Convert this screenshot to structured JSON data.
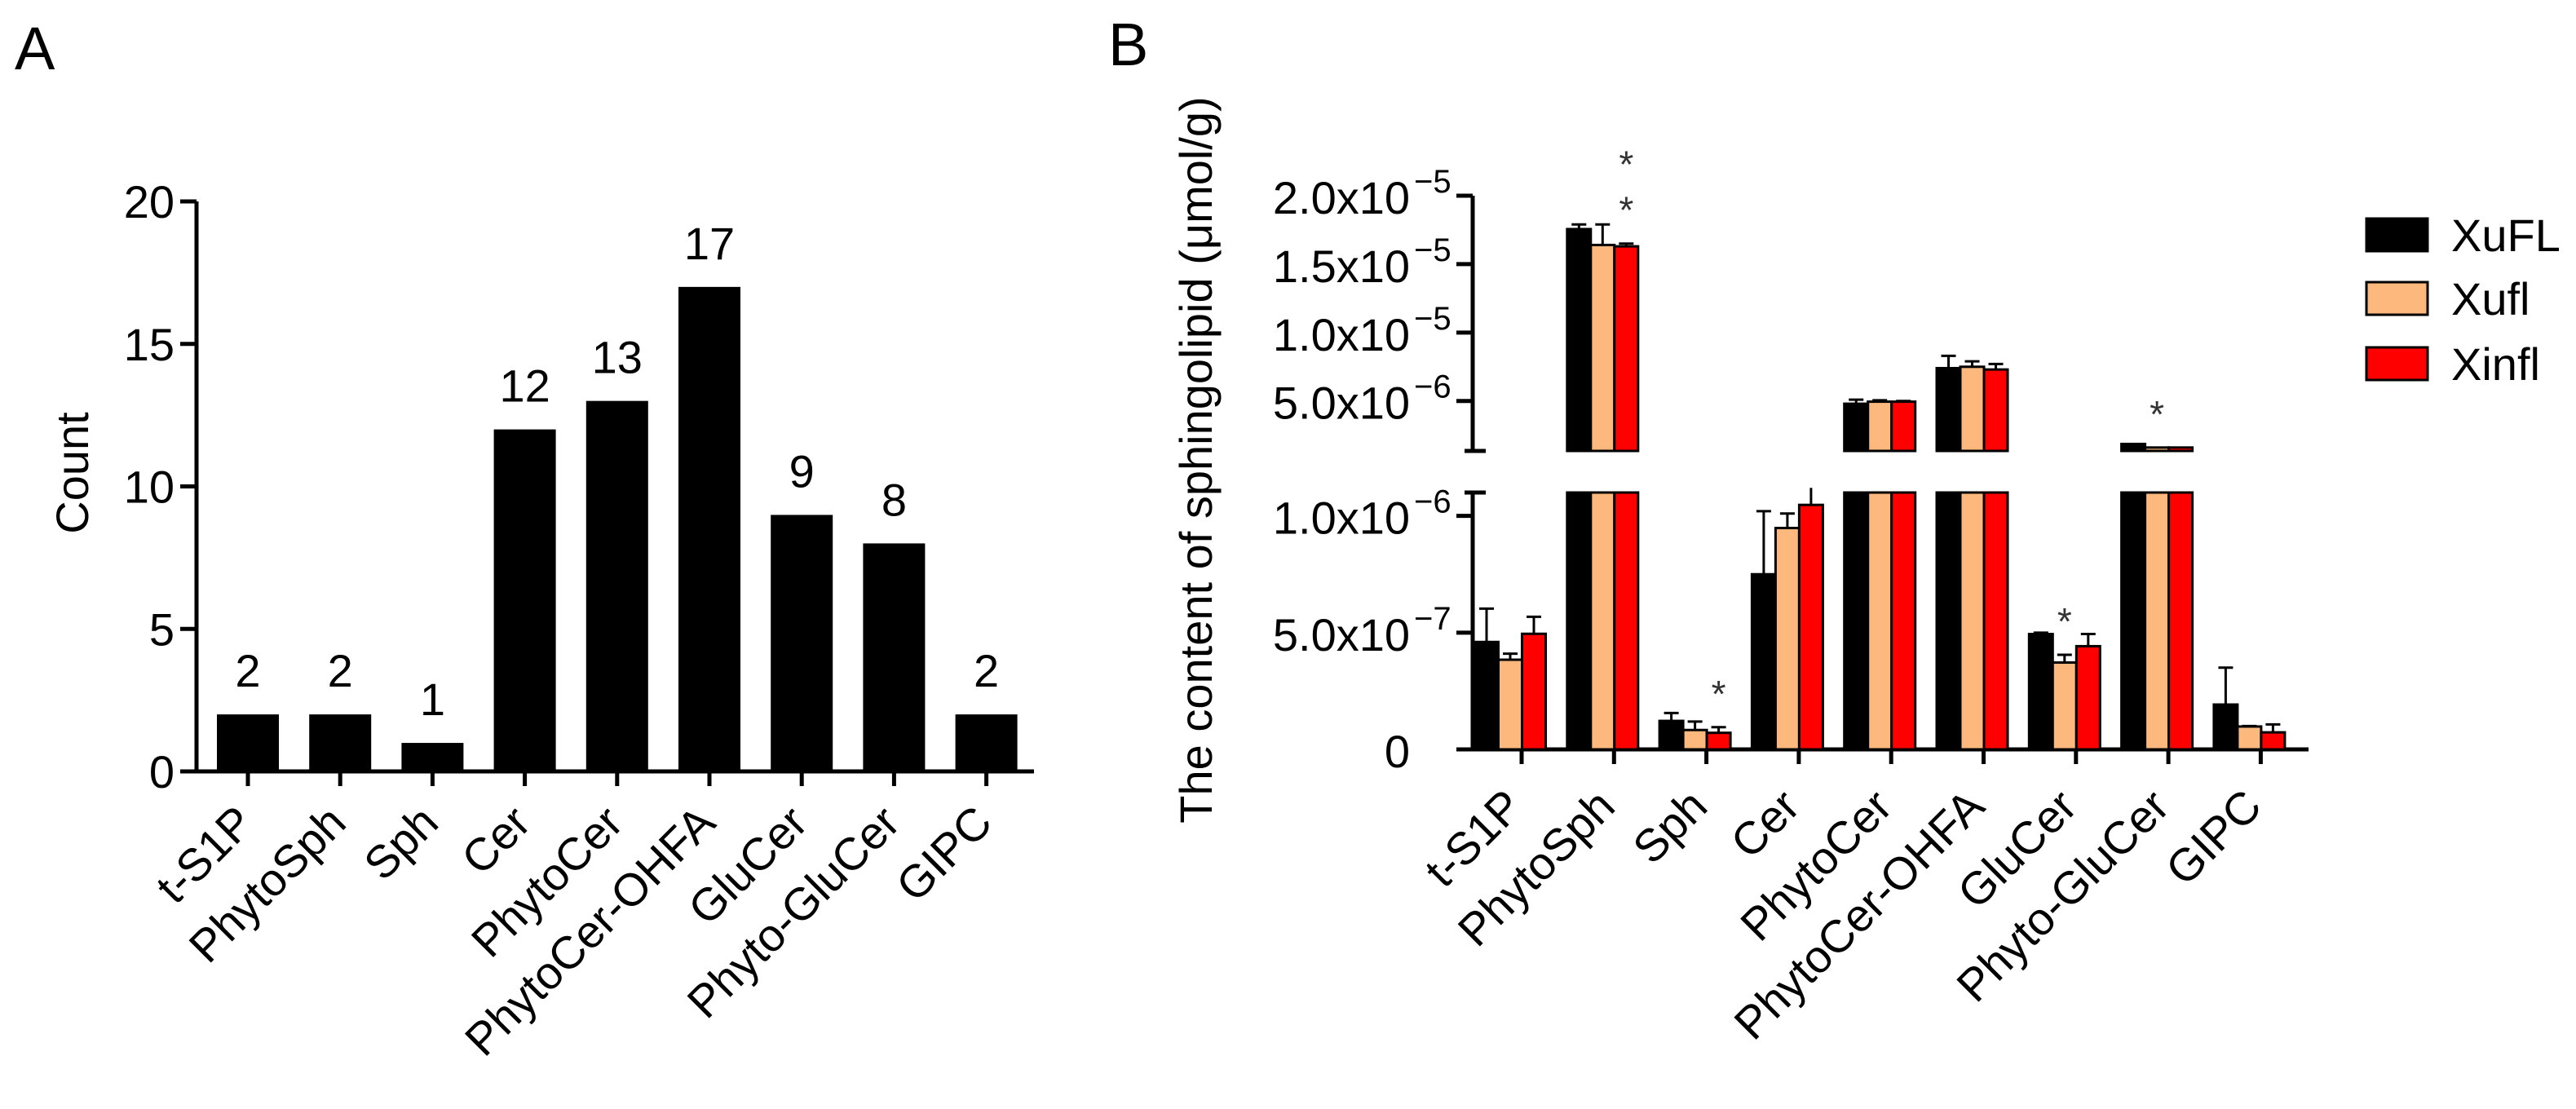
{
  "chart_data": [
    {
      "type": "bar",
      "panel_label": "A",
      "title": "",
      "xlabel": "",
      "ylabel": "Count",
      "ylim": [
        0,
        20
      ],
      "yticks": [
        "0",
        "5",
        "10",
        "15",
        "20"
      ],
      "ytick_values": [
        0,
        5,
        10,
        15,
        20
      ],
      "categories": [
        "t-S1P",
        "PhytoSph",
        "Sph",
        "Cer",
        "PhytoCer",
        "PhytoCer-OHFA",
        "GluCer",
        "Phyto-GluCer",
        "GIPC"
      ],
      "values": [
        2,
        2,
        1,
        12,
        13,
        17,
        9,
        8,
        2
      ],
      "data_labels": [
        "2",
        "2",
        "1",
        "12",
        "13",
        "17",
        "9",
        "8",
        "2"
      ],
      "colors": {
        "bar": "#000000"
      },
      "grid": false
    },
    {
      "type": "bar",
      "panel_label": "B",
      "title": "",
      "xlabel": "",
      "ylabel": "The content of sphingolipid (μmol/g)",
      "axis_break": {
        "lower_ylim": [
          0,
          1.1e-06
        ],
        "upper_ylim": [
          1.35e-06,
          2e-05
        ]
      },
      "yticks": [
        {
          "value": 0,
          "mantissa": "0",
          "exp": ""
        },
        {
          "value": 5e-07,
          "mantissa": "5.0x10",
          "exp": "−7"
        },
        {
          "value": 1e-06,
          "mantissa": "1.0x10",
          "exp": "−6"
        },
        {
          "value": 5e-06,
          "mantissa": "5.0x10",
          "exp": "−6"
        },
        {
          "value": 1e-05,
          "mantissa": "1.0x10",
          "exp": "−5"
        },
        {
          "value": 1.5e-05,
          "mantissa": "1.5x10",
          "exp": "−5"
        },
        {
          "value": 2e-05,
          "mantissa": "2.0x10",
          "exp": "−5"
        }
      ],
      "categories": [
        "t-S1P",
        "PhytoSph",
        "Sph",
        "Cer",
        "PhytoCer",
        "PhytoCer-OHFA",
        "GluCer",
        "Phyto-GluCer",
        "GIPC"
      ],
      "series": [
        {
          "name": "XuFL",
          "color": "#000000",
          "values": [
            4.6e-07,
            1.756e-05,
            1.22e-07,
            7.5e-07,
            4.8e-06,
            7.4e-06,
            4.94e-07,
            1.86e-06,
            1.92e-07
          ],
          "err_top": [
            6.03e-07,
            1.79e-05,
            1.56e-07,
            1.02e-06,
            5.1e-06,
            8.3e-06,
            5e-07,
            1.86e-06,
            3.5e-07
          ]
        },
        {
          "name": "Xufl",
          "color": "#FDB97D",
          "values": [
            3.84e-07,
            1.64e-05,
            8.3e-08,
            9.48e-07,
            4.95e-06,
            7.5e-06,
            3.72e-07,
            1.6e-06,
            9.8e-08
          ],
          "err_top": [
            4.1e-07,
            1.79e-05,
            1.19e-07,
            1.01e-06,
            5.05e-06,
            7.9e-06,
            4.05e-07,
            1.6e-06,
            1e-07
          ]
        },
        {
          "name": "Xinfl",
          "color": "#FF0000",
          "values": [
            4.95e-07,
            1.63e-05,
            7.1e-08,
            1.047e-06,
            4.95e-06,
            7.3e-06,
            4.42e-07,
            1.6e-06,
            7.3e-08
          ],
          "err_top": [
            5.68e-07,
            1.65e-05,
            9.5e-08,
            1.13e-06,
            5e-06,
            7.7e-06,
            4.94e-07,
            1.6e-06,
            1.07e-07
          ]
        }
      ],
      "annotations": [
        {
          "category": 1,
          "series": 2,
          "text": "*",
          "level": 0
        },
        {
          "category": 1,
          "series": 2,
          "text": "*",
          "level": 1
        },
        {
          "category": 2,
          "series": 2,
          "text": "*",
          "level": 0
        },
        {
          "category": 6,
          "series": 1,
          "text": "*",
          "level": 0
        },
        {
          "category": 7,
          "series": 1,
          "text": "*",
          "level": 0
        }
      ],
      "legend": {
        "position": "right",
        "entries": [
          "XuFL",
          "Xufl",
          "Xinfl"
        ]
      },
      "grid": false
    }
  ]
}
